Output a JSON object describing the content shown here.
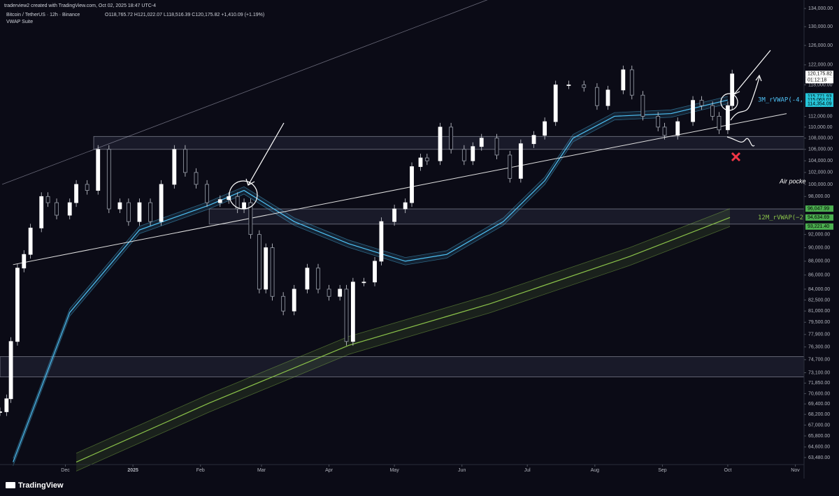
{
  "header": {
    "credit": "traderview2 created with TradingView.com, Oct 02, 2025 18:47 UTC-4",
    "symbol": "Bitcoin / TetherUS · 12h · Binance",
    "ohlc": "O118,765.72 H121,022.07 L118,516.39 C120,175.82 +1,410.09 (+1.19%)",
    "indicator": "VWAP Suite"
  },
  "footer": {
    "brand": "TradingView"
  },
  "chart_data": {
    "type": "candlestick",
    "log_scale": true,
    "xlim": [
      0,
      369
    ],
    "ylim": [
      62740,
      135900
    ],
    "xticks": [
      {
        "value": 30,
        "label": "Dec"
      },
      {
        "value": 61,
        "label": "2025"
      },
      {
        "value": 92,
        "label": "Feb"
      },
      {
        "value": 120,
        "label": "Mar"
      },
      {
        "value": 151,
        "label": "Apr"
      },
      {
        "value": 181,
        "label": "May"
      },
      {
        "value": 212,
        "label": "Jun"
      },
      {
        "value": 242,
        "label": "Jul"
      },
      {
        "value": 273,
        "label": "Aug"
      },
      {
        "value": 304,
        "label": "Sep"
      },
      {
        "value": 334,
        "label": "Oct"
      },
      {
        "value": 365,
        "label": "Nov"
      }
    ],
    "yticks": [
      {
        "value": 134000,
        "label": "134,000.00"
      },
      {
        "value": 130000,
        "label": "130,000.00"
      },
      {
        "value": 126000,
        "label": "126,000.00"
      },
      {
        "value": 122000,
        "label": "122,000.00"
      },
      {
        "value": 118000,
        "label": "118,000.00"
      },
      {
        "value": 112000,
        "label": "112,000.00"
      },
      {
        "value": 110000,
        "label": "110,000.00"
      },
      {
        "value": 108000,
        "label": "108,000.00"
      },
      {
        "value": 106000,
        "label": "106,000.00"
      },
      {
        "value": 104000,
        "label": "104,000.00"
      },
      {
        "value": 102000,
        "label": "102,000.00"
      },
      {
        "value": 100000,
        "label": "100,000.00"
      },
      {
        "value": 98000,
        "label": "98,000.00"
      },
      {
        "value": 92000,
        "label": "92,000.00"
      },
      {
        "value": 90000,
        "label": "90,000.00"
      },
      {
        "value": 88000,
        "label": "88,000.00"
      },
      {
        "value": 86000,
        "label": "86,000.00"
      },
      {
        "value": 84000,
        "label": "84,000.00"
      },
      {
        "value": 82500,
        "label": "82,500.00"
      },
      {
        "value": 81000,
        "label": "81,000.00"
      },
      {
        "value": 79500,
        "label": "79,500.00"
      },
      {
        "value": 77900,
        "label": "77,900.00"
      },
      {
        "value": 76300,
        "label": "76,300.00"
      },
      {
        "value": 74700,
        "label": "74,700.00"
      },
      {
        "value": 73100,
        "label": "73,100.00"
      },
      {
        "value": 71850,
        "label": "71,850.00"
      },
      {
        "value": 70600,
        "label": "70,600.00"
      },
      {
        "value": 69400,
        "label": "69,400.00"
      },
      {
        "value": 68200,
        "label": "68,200.00"
      },
      {
        "value": 67000,
        "label": "67,000.00"
      },
      {
        "value": 65800,
        "label": "65,800.00"
      },
      {
        "value": 64600,
        "label": "64,600.00"
      },
      {
        "value": 63480,
        "label": "63,480.00"
      }
    ],
    "price": {
      "up_color": "#ffffff",
      "down_color": "#9aa0ab",
      "x": [
        0,
        3,
        5,
        8,
        11,
        14,
        19,
        22,
        26,
        32,
        35,
        40,
        45,
        50,
        55,
        59,
        64,
        69,
        74,
        80,
        85,
        90,
        95,
        101,
        105,
        109,
        112,
        115,
        119,
        122,
        125,
        130,
        135,
        141,
        146,
        151,
        156,
        159,
        162,
        167,
        172,
        175,
        181,
        186,
        189,
        193,
        196,
        202,
        207,
        213,
        217,
        221,
        228,
        234,
        239,
        245,
        250,
        255,
        261,
        268,
        274,
        279,
        286,
        290,
        295,
        302,
        305,
        311,
        318,
        322,
        327,
        330,
        334,
        336
      ],
      "close": [
        68500,
        70000,
        77000,
        87000,
        89000,
        93000,
        98000,
        97000,
        95000,
        97000,
        100000,
        99000,
        106000,
        96000,
        97000,
        94000,
        97000,
        94000,
        100000,
        106000,
        102000,
        100000,
        97000,
        97500,
        98000,
        96000,
        97000,
        92000,
        84000,
        90000,
        83000,
        81000,
        84000,
        87000,
        84000,
        83000,
        84000,
        77000,
        85000,
        85000,
        88000,
        94000,
        96000,
        97000,
        103000,
        104500,
        104000,
        110000,
        106000,
        104000,
        106500,
        108000,
        105000,
        101000,
        107000,
        108500,
        111000,
        118000,
        118000,
        117500,
        114000,
        117000,
        121000,
        116000,
        112000,
        110000,
        108500,
        111000,
        115000,
        114000,
        112000,
        109500,
        114000,
        120175.82
      ]
    },
    "bands": [
      {
        "label": "3M_rVWAP(-4,",
        "color": "#4fc3f7",
        "band_pct": 0.616,
        "x": [
          6,
          32,
          64,
          96,
          112,
          135,
          160,
          186,
          205,
          231,
          250,
          263,
          282,
          308,
          334
        ],
        "values": [
          63000,
          80800,
          92700,
          96600,
          99000,
          94000,
          90600,
          88000,
          89000,
          94000,
          100600,
          108000,
          112000,
          112500,
          115063.01
        ]
      },
      {
        "label": "12M_rVWAP(−2",
        "color": "#8bc34a",
        "band_pct": 1.49,
        "x": [
          35,
          96,
          160,
          225,
          289,
          335
        ],
        "values": [
          63000,
          69500,
          76500,
          82000,
          88700,
          94634.69
        ]
      }
    ],
    "price_labels": [
      {
        "value": 120175.82,
        "label": "120,175.82",
        "color": "#ffffff"
      },
      {
        "value": 115771.93,
        "label": "115,771.93",
        "color": "#26c6da"
      },
      {
        "value": 115063.01,
        "label": "115,063.01",
        "color": "#26c6da"
      },
      {
        "value": 114354.09,
        "label": "114,354.09",
        "color": "#26c6da"
      },
      {
        "value": 96047.99,
        "label": "96,047.99",
        "color": "#4caf50"
      },
      {
        "value": 94634.69,
        "label": "94,634.69",
        "color": "#4caf50"
      },
      {
        "value": 93221.4,
        "label": "93,221.40",
        "color": "#4caf50"
      }
    ],
    "countdown": "01:12:18",
    "zones": [
      {
        "x_start": 43,
        "low": 106000,
        "high": 108300
      },
      {
        "x_start": 96,
        "low": 93600,
        "high": 96000
      },
      {
        "x_start": 0,
        "low": 72600,
        "high": 75080
      }
    ],
    "trendlines": [
      {
        "x": [
          6,
          361
        ],
        "values": [
          87500,
          112500
        ]
      },
      {
        "x": [
          1,
          224
        ],
        "values": [
          100000,
          136000
        ]
      }
    ],
    "annotation": "Air pocke"
  }
}
